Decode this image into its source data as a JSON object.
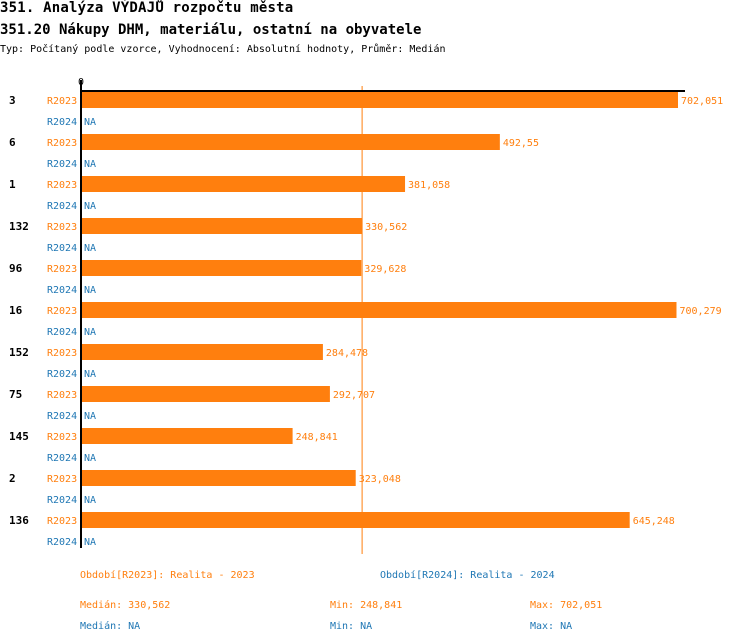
{
  "header": {
    "title": "351. Analýza VÝDAJŮ rozpočtu města",
    "subtitle": "351.20 Nákupy DHM, materiálu, ostatní na obyvatele",
    "info": "Typ: Počítaný podle vzorce, Vyhodnocení: Absolutní hodnoty, Průměr: Medián"
  },
  "colors": {
    "r2023": "#ff7f0e",
    "r2024": "#1f77b4",
    "axis": "#000000"
  },
  "chart_data": {
    "type": "bar",
    "orientation": "horizontal",
    "title": "351.20 Nákupy DHM, materiálu, ostatní na obyvatele",
    "xlabel": "",
    "ylabel": "",
    "x_tick_labels": [
      "0"
    ],
    "xlim": [
      0,
      702.051
    ],
    "categories": [
      "3",
      "6",
      "1",
      "132",
      "96",
      "16",
      "152",
      "75",
      "145",
      "2",
      "136"
    ],
    "series": [
      {
        "name": "R2023",
        "values": [
          702.051,
          492.55,
          381.058,
          330.562,
          329.628,
          700.279,
          284.478,
          292.707,
          248.841,
          323.048,
          645.248
        ],
        "labels": [
          "702,051",
          "492,55",
          "381,058",
          "330,562",
          "329,628",
          "700,279",
          "284,478",
          "292,707",
          "248,841",
          "323,048",
          "645,248"
        ]
      },
      {
        "name": "R2024",
        "values": [
          null,
          null,
          null,
          null,
          null,
          null,
          null,
          null,
          null,
          null,
          null
        ],
        "labels": [
          "NA",
          "NA",
          "NA",
          "NA",
          "NA",
          "NA",
          "NA",
          "NA",
          "NA",
          "NA",
          "NA"
        ]
      }
    ],
    "reference_line": {
      "name": "Medián R2023",
      "value": 330.562
    }
  },
  "legend": {
    "r2023": "Období[R2023]: Realita - 2023",
    "r2024": "Období[R2024]: Realita - 2024"
  },
  "stats": {
    "r2023": {
      "median": "Medián: 330,562",
      "min": "Min: 248,841",
      "max": "Max: 702,051"
    },
    "r2024": {
      "median": "Medián: NA",
      "min": "Min: NA",
      "max": "Max: NA"
    }
  }
}
